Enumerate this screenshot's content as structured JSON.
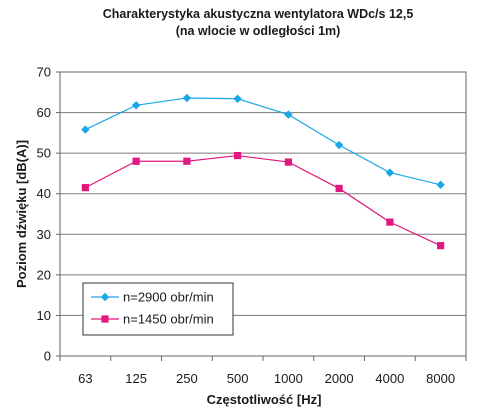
{
  "chart_data": {
    "type": "line",
    "title": "Charakterystyka akustyczna wentylatora WDc/s 12,5",
    "subtitle": "(na wlocie w odległości 1m)",
    "xlabel": "Częstotliwość [Hz]",
    "ylabel": "Poziom dźwięku [dB(A)]",
    "categories": [
      "63",
      "125",
      "250",
      "500",
      "1000",
      "2000",
      "4000",
      "8000"
    ],
    "ylim": [
      0,
      70
    ],
    "yticks": [
      0,
      10,
      20,
      30,
      40,
      50,
      60,
      70
    ],
    "grid": true,
    "legend_position": "bottom-left",
    "series": [
      {
        "name": "n=2900 obr/min",
        "values": [
          55.8,
          61.8,
          63.6,
          63.4,
          59.5,
          52.0,
          45.2,
          42.2
        ],
        "color": "#1aa7e8",
        "marker": "diamond"
      },
      {
        "name": "n=1450 obr/min",
        "values": [
          41.5,
          48.0,
          48.0,
          49.4,
          47.8,
          41.3,
          33.0,
          27.2
        ],
        "color": "#e0187f",
        "marker": "square"
      }
    ]
  }
}
